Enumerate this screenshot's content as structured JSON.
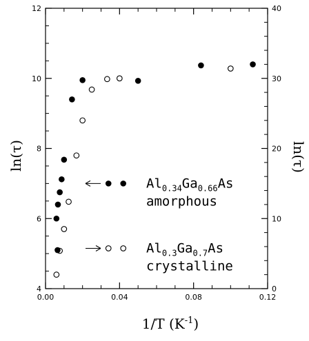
{
  "chart_data": {
    "type": "scatter",
    "xlabel": {
      "base": "1/T (K",
      "sup": "-1",
      "close": ")"
    },
    "ylabel_left": "ln(τ)",
    "ylabel_right": "ln(τ)",
    "xlim": [
      0.0,
      0.12
    ],
    "ylim_left": [
      4,
      12
    ],
    "ylim_right": [
      0,
      40
    ],
    "xticks": [
      0.0,
      0.04,
      0.08,
      0.12
    ],
    "xtick_labels": [
      "0.00",
      "0.04",
      "0.08",
      "0.12"
    ],
    "yticks_left": [
      4,
      6,
      8,
      10,
      12
    ],
    "yticks_left_labels": [
      "4",
      "6",
      "8",
      "10",
      "12"
    ],
    "yticks_right": [
      0,
      10,
      20,
      30,
      40
    ],
    "yticks_right_labels": [
      "0",
      "10",
      "20",
      "30",
      "40"
    ],
    "grid": false,
    "series": [
      {
        "label_parts": [
          {
            "t": "Al",
            "sub": false
          },
          {
            "t": "0.34",
            "sub": true
          },
          {
            "t": "Ga",
            "sub": false
          },
          {
            "t": "0.66",
            "sub": true
          },
          {
            "t": "As",
            "sub": false
          }
        ],
        "label_line2": "amorphous",
        "marker": "filled-circle",
        "axis": "left",
        "x": [
          0.0059,
          0.0067,
          0.0077,
          0.0087,
          0.01,
          0.0143,
          0.02,
          0.05,
          0.084,
          0.112
        ],
        "y": [
          6.0,
          6.4,
          6.75,
          7.12,
          7.68,
          9.4,
          9.95,
          9.93,
          10.37,
          10.4
        ]
      },
      {
        "label_parts": [
          {
            "t": "Al",
            "sub": false
          },
          {
            "t": "0.3",
            "sub": true
          },
          {
            "t": "Ga",
            "sub": false
          },
          {
            "t": "0.7",
            "sub": true
          },
          {
            "t": "As",
            "sub": false
          }
        ],
        "label_line2": "crystalline",
        "marker": "open-circle",
        "axis": "left",
        "x": [
          0.0059,
          0.0077,
          0.01,
          0.0125,
          0.0167,
          0.02,
          0.025,
          0.0333,
          0.04,
          0.1
        ],
        "y": [
          4.4,
          5.08,
          5.7,
          6.48,
          7.8,
          8.8,
          9.68,
          9.98,
          10.0,
          10.28
        ]
      }
    ],
    "inline_markers": [
      {
        "series": 0,
        "x": [
          0.034,
          0.042
        ],
        "y": [
          7.0,
          7.0
        ]
      },
      {
        "series": 1,
        "x": [
          0.034,
          0.042
        ],
        "y": [
          5.15,
          5.15
        ]
      }
    ],
    "extra_points": [
      {
        "series": 0,
        "x": 0.0065,
        "y": 5.1
      }
    ]
  }
}
